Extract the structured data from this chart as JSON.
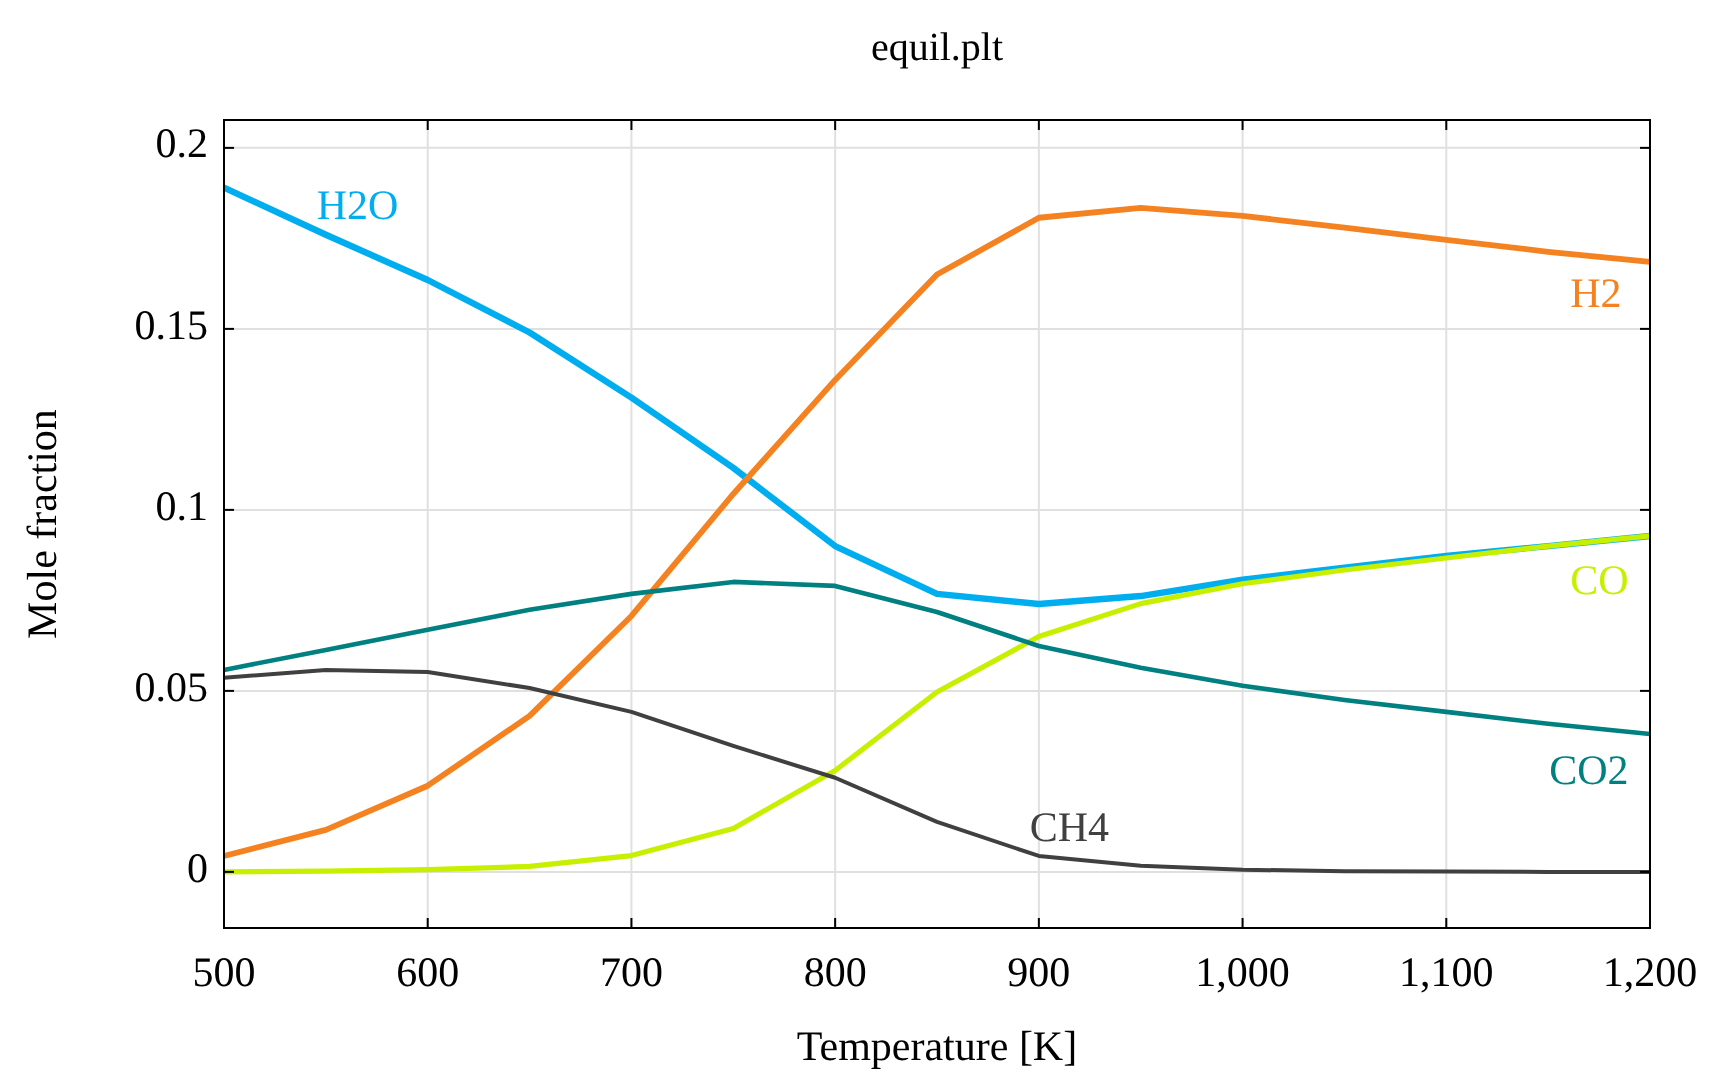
{
  "chart_data": {
    "type": "line",
    "title": "equil.plt",
    "xlabel": "Temperature [K]",
    "ylabel": "Mole fraction",
    "x": [
      500,
      550,
      600,
      650,
      700,
      750,
      800,
      850,
      900,
      950,
      1000,
      1050,
      1100,
      1150,
      1200
    ],
    "series": [
      {
        "name": "H2O",
        "color": "#00aeef",
        "values": [
          0.189,
          0.176,
          0.1635,
          0.149,
          0.131,
          0.1116,
          0.09,
          0.0768,
          0.074,
          0.0762,
          0.0807,
          0.084,
          0.0873,
          0.09,
          0.0928
        ]
      },
      {
        "name": "H2",
        "color": "#f58220",
        "values": [
          0.0044,
          0.0116,
          0.0238,
          0.0431,
          0.0707,
          0.1044,
          0.1359,
          0.165,
          0.1807,
          0.1834,
          0.1812,
          0.178,
          0.1746,
          0.1713,
          0.1685
        ]
      },
      {
        "name": "CO",
        "color": "#c6f000",
        "values": [
          0,
          0.0002,
          0.0006,
          0.0015,
          0.0045,
          0.012,
          0.028,
          0.0497,
          0.065,
          0.0741,
          0.0796,
          0.0834,
          0.0867,
          0.09,
          0.0928
        ]
      },
      {
        "name": "CO2",
        "color": "#008080",
        "values": [
          0.0558,
          0.0613,
          0.0669,
          0.0724,
          0.0768,
          0.0801,
          0.079,
          0.0718,
          0.0624,
          0.0564,
          0.0514,
          0.0475,
          0.0442,
          0.0409,
          0.0381
        ]
      },
      {
        "name": "CH4",
        "color": "#404040",
        "values": [
          0.0536,
          0.0558,
          0.0552,
          0.0508,
          0.0442,
          0.0348,
          0.026,
          0.0138,
          0.0044,
          0.0017,
          0.0006,
          0.0002,
          0.0001,
          0,
          0
        ]
      }
    ],
    "xlim": [
      500,
      1200
    ],
    "ylim": [
      -0.0155,
      0.2077
    ],
    "xticks": [
      500,
      600,
      700,
      800,
      900,
      {
        "value": 1000,
        "label": "1,000"
      },
      {
        "value": 1100,
        "label": "1,100"
      },
      {
        "value": 1200,
        "label": "1,200"
      }
    ],
    "yticks": [
      0,
      0.05,
      0.1,
      0.15,
      0.2
    ],
    "grid": true,
    "line_style": "solid"
  }
}
